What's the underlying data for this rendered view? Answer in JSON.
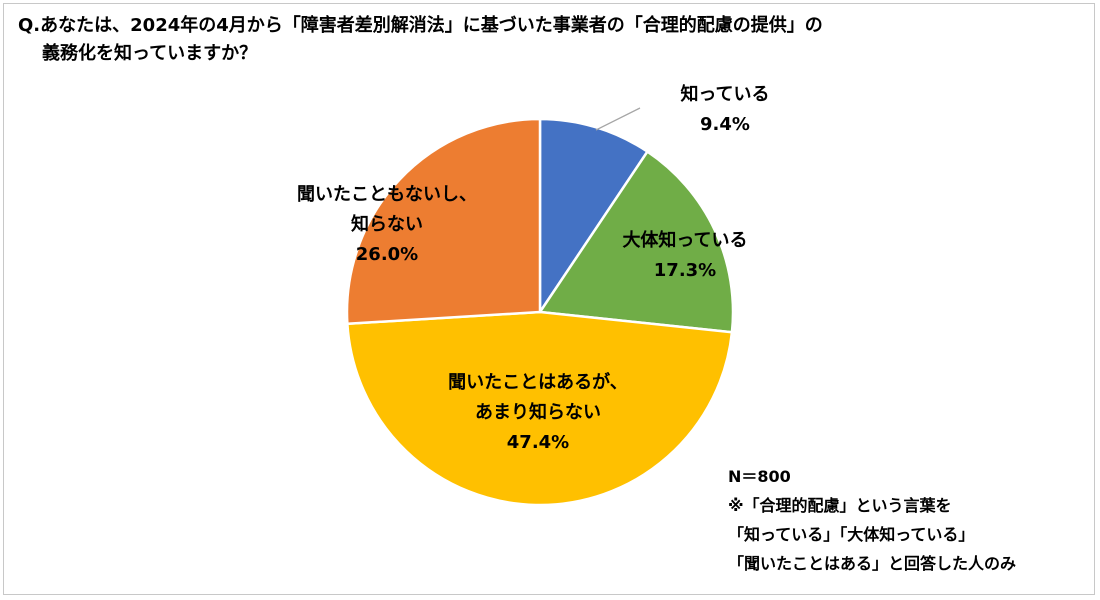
{
  "title": {
    "line1": "Q.あなたは、2024年の4月から「障害者差別解消法」に基づいた事業者の「合理的配慮の提供」の",
    "line2": "義務化を知っていますか？"
  },
  "chart_data": {
    "type": "pie",
    "slices": [
      {
        "label_lines": [
          "知っている"
        ],
        "value": 9.4,
        "value_label": "9.4%",
        "color": "#4472c4"
      },
      {
        "label_lines": [
          "大体知っている"
        ],
        "value": 17.3,
        "value_label": "17.3%",
        "color": "#70ad47"
      },
      {
        "label_lines": [
          "聞いたことはあるが、",
          "あまり知らない"
        ],
        "value": 47.4,
        "value_label": "47.4%",
        "color": "#ffc000"
      },
      {
        "label_lines": [
          "聞いたこともないし、",
          "知らない"
        ],
        "value": 26.0,
        "value_label": "26.0%",
        "color": "#ed7d31"
      }
    ],
    "start": "12 o'clock",
    "direction": "clockwise"
  },
  "note": {
    "n": "N＝800",
    "line1": "※「合理的配慮」という言葉を",
    "line2": "「知っている」「大体知っている」",
    "line3": "「聞いたことはある」と回答した人のみ"
  }
}
